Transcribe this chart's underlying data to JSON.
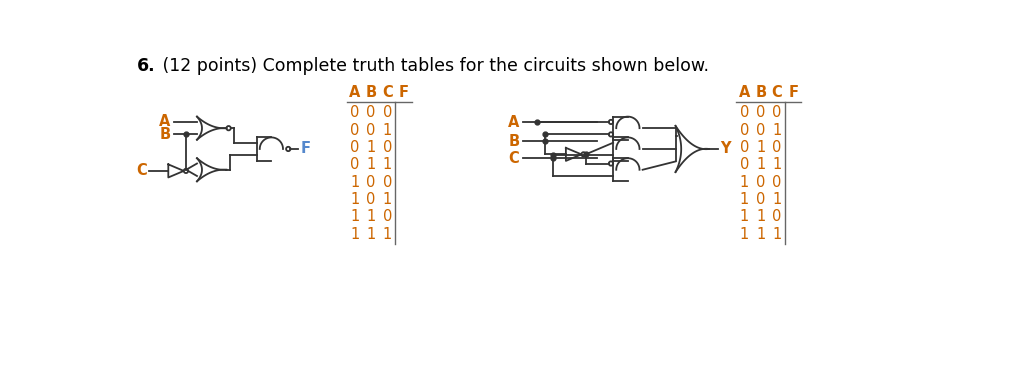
{
  "title_num": "6.",
  "title_rest": " (12 points) Complete truth tables for the circuits shown below.",
  "title_fontsize": 12.5,
  "background_color": "#ffffff",
  "table1_headers": [
    "A",
    "B",
    "C",
    "F"
  ],
  "table_rows": [
    [
      "0",
      "0",
      "0"
    ],
    [
      "0",
      "0",
      "1"
    ],
    [
      "0",
      "1",
      "0"
    ],
    [
      "0",
      "1",
      "1"
    ],
    [
      "1",
      "0",
      "0"
    ],
    [
      "1",
      "0",
      "1"
    ],
    [
      "1",
      "1",
      "0"
    ],
    [
      "1",
      "1",
      "1"
    ]
  ],
  "label_color": "#cc6600",
  "header_color": "#cc6600",
  "text_color": "#cc6600",
  "line_color": "#333333",
  "gate_color": "#333333",
  "F_color": "#5588cc",
  "Y_color": "#cc6600"
}
